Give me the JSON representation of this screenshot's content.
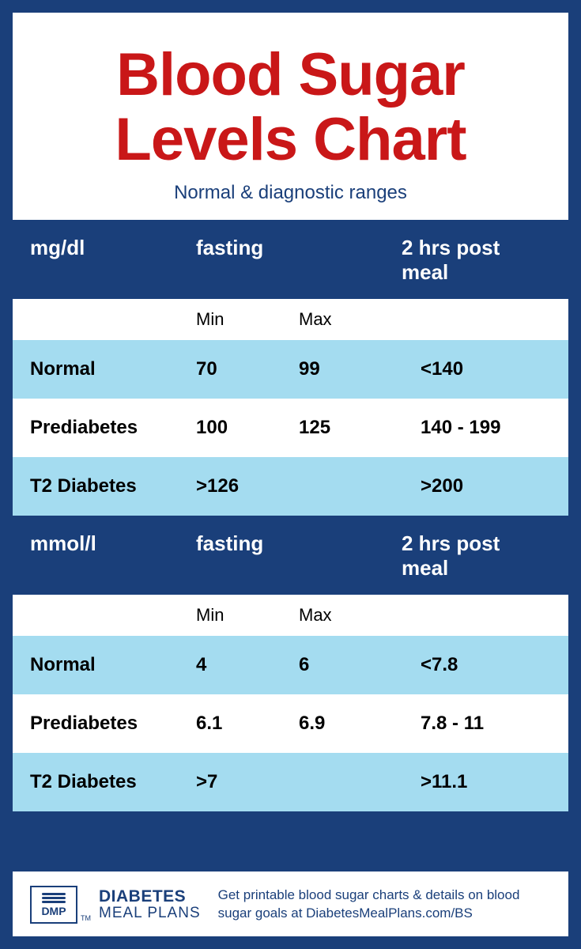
{
  "colors": {
    "border_navy": "#1a3f7a",
    "title_red": "#c91718",
    "row_light_blue": "#a4dcf0",
    "white": "#ffffff",
    "black": "#000000"
  },
  "title": "Blood Sugar Levels Chart",
  "subtitle": "Normal & diagnostic ranges",
  "sections": [
    {
      "unit": "mg/dl",
      "fasting_label": "fasting",
      "post_label": "2 hrs post meal",
      "sub_min": "Min",
      "sub_max": "Max",
      "rows": [
        {
          "label": "Normal",
          "min": "70",
          "max": "99",
          "post": "<140",
          "bg": "lt"
        },
        {
          "label": "Prediabetes",
          "min": "100",
          "max": "125",
          "post": "140 - 199",
          "bg": "wh"
        },
        {
          "label": "T2 Diabetes",
          "min": ">126",
          "max": "",
          "post": ">200",
          "bg": "lt"
        }
      ]
    },
    {
      "unit": "mmol/l",
      "fasting_label": "fasting",
      "post_label": "2 hrs post meal",
      "sub_min": "Min",
      "sub_max": "Max",
      "rows": [
        {
          "label": "Normal",
          "min": "4",
          "max": "6",
          "post": "<7.8",
          "bg": "lt"
        },
        {
          "label": "Prediabetes",
          "min": "6.1",
          "max": "6.9",
          "post": "7.8 - 11",
          "bg": "wh"
        },
        {
          "label": "T2 Diabetes",
          "min": ">7",
          "max": "",
          "post": ">11.1",
          "bg": "lt"
        }
      ]
    }
  ],
  "footer": {
    "logo_abbrev": "DMP",
    "logo_line1": "DIABETES",
    "logo_line2": "MEAL PLANS",
    "tm": "TM",
    "note": "Get printable blood sugar charts & details on blood sugar goals at DiabetesMealPlans.com/BS"
  }
}
